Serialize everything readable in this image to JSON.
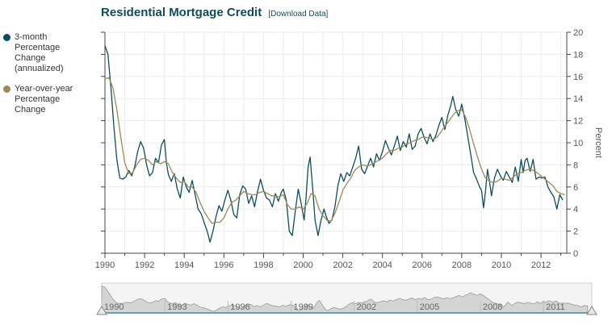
{
  "header": {
    "title": "Residential Mortgage Credit",
    "download_label": "[Download Data]"
  },
  "legend": {
    "items": [
      {
        "label": "3-month Percentage Change (annualized)",
        "color": "#0d4d5e"
      },
      {
        "label": "Year-over-year Percentage Change",
        "color": "#9c8a55"
      }
    ]
  },
  "navigator": {
    "labels": [
      "1990",
      "1993",
      "1996",
      "1999",
      "2002",
      "2005",
      "2008",
      "2011"
    ]
  },
  "chart_data": {
    "type": "line",
    "title": "Residential Mortgage Credit",
    "ylabel": "Percent",
    "xlabel": "",
    "xlim": [
      1990,
      2013.3
    ],
    "ylim": [
      0,
      20
    ],
    "x_ticks": [
      "1990",
      "1992",
      "1994",
      "1996",
      "1998",
      "2000",
      "2002",
      "2004",
      "2006",
      "2008",
      "2010",
      "2012"
    ],
    "y_ticks": [
      "0",
      "2",
      "4",
      "6",
      "8",
      "10",
      "12",
      "14",
      "16",
      "18",
      "20"
    ],
    "series": [
      {
        "name": "3-month Percentage Change (annualized)",
        "color": "#0d4d5e",
        "points": [
          [
            1990.0,
            18.8
          ],
          [
            1990.15,
            18.0
          ],
          [
            1990.3,
            15.0
          ],
          [
            1990.45,
            11.5
          ],
          [
            1990.6,
            8.5
          ],
          [
            1990.75,
            6.8
          ],
          [
            1990.9,
            6.7
          ],
          [
            1991.05,
            6.9
          ],
          [
            1991.2,
            7.5
          ],
          [
            1991.35,
            7.0
          ],
          [
            1991.5,
            7.8
          ],
          [
            1991.65,
            9.2
          ],
          [
            1991.8,
            10.1
          ],
          [
            1991.95,
            9.5
          ],
          [
            1992.1,
            8.0
          ],
          [
            1992.25,
            7.0
          ],
          [
            1992.4,
            7.3
          ],
          [
            1992.55,
            8.6
          ],
          [
            1992.7,
            8.2
          ],
          [
            1992.85,
            9.8
          ],
          [
            1993.0,
            10.3
          ],
          [
            1993.1,
            8.2
          ],
          [
            1993.2,
            7.1
          ],
          [
            1993.35,
            6.5
          ],
          [
            1993.5,
            7.2
          ],
          [
            1993.65,
            5.8
          ],
          [
            1993.8,
            5.0
          ],
          [
            1993.95,
            6.9
          ],
          [
            1994.1,
            6.0
          ],
          [
            1994.25,
            5.5
          ],
          [
            1994.4,
            6.6
          ],
          [
            1994.55,
            5.3
          ],
          [
            1994.7,
            4.0
          ],
          [
            1994.85,
            3.6
          ],
          [
            1995.0,
            2.8
          ],
          [
            1995.1,
            2.3
          ],
          [
            1995.2,
            1.7
          ],
          [
            1995.3,
            1.0
          ],
          [
            1995.45,
            2.0
          ],
          [
            1995.6,
            3.3
          ],
          [
            1995.75,
            4.3
          ],
          [
            1995.9,
            3.8
          ],
          [
            1996.05,
            4.8
          ],
          [
            1996.2,
            5.7
          ],
          [
            1996.35,
            4.8
          ],
          [
            1996.5,
            3.5
          ],
          [
            1996.65,
            3.2
          ],
          [
            1996.8,
            5.3
          ],
          [
            1996.95,
            6.1
          ],
          [
            1997.1,
            5.8
          ],
          [
            1997.25,
            4.5
          ],
          [
            1997.4,
            5.2
          ],
          [
            1997.55,
            4.2
          ],
          [
            1997.7,
            5.6
          ],
          [
            1997.85,
            6.7
          ],
          [
            1998.0,
            5.7
          ],
          [
            1998.15,
            5.0
          ],
          [
            1998.3,
            4.8
          ],
          [
            1998.45,
            4.2
          ],
          [
            1998.6,
            5.4
          ],
          [
            1998.75,
            4.7
          ],
          [
            1998.9,
            5.5
          ],
          [
            1999.0,
            5.8
          ],
          [
            1999.15,
            4.8
          ],
          [
            1999.3,
            2.0
          ],
          [
            1999.45,
            1.6
          ],
          [
            1999.6,
            3.8
          ],
          [
            1999.75,
            5.8
          ],
          [
            1999.9,
            4.5
          ],
          [
            2000.05,
            3.0
          ],
          [
            2000.15,
            5.2
          ],
          [
            2000.25,
            7.8
          ],
          [
            2000.35,
            8.7
          ],
          [
            2000.5,
            5.4
          ],
          [
            2000.6,
            3.0
          ],
          [
            2000.75,
            1.6
          ],
          [
            2000.9,
            3.0
          ],
          [
            2001.05,
            4.0
          ],
          [
            2001.15,
            3.4
          ],
          [
            2001.3,
            2.7
          ],
          [
            2001.45,
            3.0
          ],
          [
            2001.6,
            4.2
          ],
          [
            2001.75,
            6.1
          ],
          [
            2001.9,
            7.2
          ],
          [
            2002.05,
            6.5
          ],
          [
            2002.2,
            7.3
          ],
          [
            2002.35,
            7.0
          ],
          [
            2002.5,
            7.8
          ],
          [
            2002.65,
            8.6
          ],
          [
            2002.8,
            9.7
          ],
          [
            2002.95,
            7.6
          ],
          [
            2003.1,
            7.2
          ],
          [
            2003.25,
            7.9
          ],
          [
            2003.4,
            8.6
          ],
          [
            2003.55,
            7.8
          ],
          [
            2003.7,
            9.0
          ],
          [
            2003.85,
            8.4
          ],
          [
            2004.0,
            9.2
          ],
          [
            2004.15,
            10.2
          ],
          [
            2004.3,
            9.5
          ],
          [
            2004.45,
            8.9
          ],
          [
            2004.6,
            9.7
          ],
          [
            2004.75,
            10.6
          ],
          [
            2004.9,
            9.3
          ],
          [
            2005.05,
            10.1
          ],
          [
            2005.2,
            9.6
          ],
          [
            2005.35,
            10.8
          ],
          [
            2005.5,
            9.4
          ],
          [
            2005.65,
            9.7
          ],
          [
            2005.8,
            10.8
          ],
          [
            2005.95,
            11.3
          ],
          [
            2006.1,
            10.5
          ],
          [
            2006.25,
            9.9
          ],
          [
            2006.4,
            10.8
          ],
          [
            2006.55,
            10.1
          ],
          [
            2006.7,
            10.7
          ],
          [
            2006.85,
            11.6
          ],
          [
            2007.0,
            12.3
          ],
          [
            2007.15,
            11.2
          ],
          [
            2007.3,
            12.5
          ],
          [
            2007.45,
            13.4
          ],
          [
            2007.55,
            14.2
          ],
          [
            2007.7,
            13.0
          ],
          [
            2007.85,
            12.4
          ],
          [
            2008.0,
            13.5
          ],
          [
            2008.15,
            12.2
          ],
          [
            2008.3,
            10.6
          ],
          [
            2008.45,
            9.0
          ],
          [
            2008.6,
            7.3
          ],
          [
            2008.75,
            6.7
          ],
          [
            2008.9,
            6.0
          ],
          [
            2009.0,
            5.7
          ],
          [
            2009.1,
            4.1
          ],
          [
            2009.2,
            5.6
          ],
          [
            2009.3,
            7.6
          ],
          [
            2009.4,
            6.5
          ],
          [
            2009.5,
            5.2
          ],
          [
            2009.65,
            6.8
          ],
          [
            2009.8,
            7.6
          ],
          [
            2009.95,
            7.0
          ],
          [
            2010.1,
            6.6
          ],
          [
            2010.25,
            7.4
          ],
          [
            2010.4,
            6.9
          ],
          [
            2010.55,
            6.4
          ],
          [
            2010.7,
            7.8
          ],
          [
            2010.85,
            6.5
          ],
          [
            2011.0,
            8.5
          ],
          [
            2011.1,
            7.3
          ],
          [
            2011.2,
            8.4
          ],
          [
            2011.3,
            8.6
          ],
          [
            2011.45,
            7.4
          ],
          [
            2011.6,
            8.5
          ],
          [
            2011.75,
            6.7
          ],
          [
            2011.9,
            6.9
          ],
          [
            2012.05,
            6.8
          ],
          [
            2012.2,
            6.9
          ],
          [
            2012.35,
            6.0
          ],
          [
            2012.5,
            5.5
          ],
          [
            2012.65,
            5.1
          ],
          [
            2012.8,
            4.0
          ],
          [
            2012.95,
            5.3
          ],
          [
            2013.1,
            4.8
          ]
        ]
      },
      {
        "name": "Year-over-year Percentage Change",
        "color": "#9c8a55",
        "points": [
          [
            1990.0,
            15.8
          ],
          [
            1990.2,
            15.9
          ],
          [
            1990.4,
            15.0
          ],
          [
            1990.6,
            13.0
          ],
          [
            1990.8,
            10.5
          ],
          [
            1991.0,
            8.2
          ],
          [
            1991.2,
            7.2
          ],
          [
            1991.4,
            7.3
          ],
          [
            1991.6,
            8.0
          ],
          [
            1991.8,
            8.5
          ],
          [
            1992.0,
            8.6
          ],
          [
            1992.2,
            8.4
          ],
          [
            1992.4,
            8.0
          ],
          [
            1992.6,
            8.3
          ],
          [
            1992.8,
            8.1
          ],
          [
            1993.0,
            8.3
          ],
          [
            1993.2,
            8.1
          ],
          [
            1993.4,
            7.3
          ],
          [
            1993.6,
            6.8
          ],
          [
            1993.8,
            6.4
          ],
          [
            1994.0,
            6.5
          ],
          [
            1994.2,
            6.0
          ],
          [
            1994.4,
            6.0
          ],
          [
            1994.6,
            5.5
          ],
          [
            1994.8,
            4.6
          ],
          [
            1995.0,
            3.8
          ],
          [
            1995.2,
            3.2
          ],
          [
            1995.4,
            2.7
          ],
          [
            1995.6,
            2.8
          ],
          [
            1995.8,
            2.8
          ],
          [
            1996.0,
            3.2
          ],
          [
            1996.2,
            4.0
          ],
          [
            1996.4,
            4.6
          ],
          [
            1996.6,
            4.8
          ],
          [
            1996.8,
            5.2
          ],
          [
            1997.0,
            5.6
          ],
          [
            1997.2,
            5.4
          ],
          [
            1997.4,
            5.3
          ],
          [
            1997.6,
            5.3
          ],
          [
            1997.8,
            5.5
          ],
          [
            1998.0,
            5.6
          ],
          [
            1998.2,
            5.4
          ],
          [
            1998.4,
            5.2
          ],
          [
            1998.6,
            5.2
          ],
          [
            1998.8,
            5.1
          ],
          [
            1999.0,
            5.3
          ],
          [
            1999.2,
            4.4
          ],
          [
            1999.4,
            4.0
          ],
          [
            1999.6,
            4.0
          ],
          [
            1999.8,
            4.2
          ],
          [
            2000.0,
            4.0
          ],
          [
            2000.2,
            4.5
          ],
          [
            2000.4,
            5.4
          ],
          [
            2000.6,
            5.2
          ],
          [
            2000.8,
            4.0
          ],
          [
            2001.0,
            3.4
          ],
          [
            2001.2,
            3.0
          ],
          [
            2001.4,
            2.9
          ],
          [
            2001.6,
            3.6
          ],
          [
            2001.8,
            4.6
          ],
          [
            2002.0,
            5.7
          ],
          [
            2002.2,
            6.3
          ],
          [
            2002.4,
            6.8
          ],
          [
            2002.6,
            7.5
          ],
          [
            2002.8,
            7.8
          ],
          [
            2003.0,
            8.0
          ],
          [
            2003.2,
            7.9
          ],
          [
            2003.4,
            8.0
          ],
          [
            2003.6,
            8.2
          ],
          [
            2003.8,
            8.4
          ],
          [
            2004.0,
            8.6
          ],
          [
            2004.2,
            9.0
          ],
          [
            2004.4,
            9.3
          ],
          [
            2004.6,
            9.3
          ],
          [
            2004.8,
            9.5
          ],
          [
            2005.0,
            9.6
          ],
          [
            2005.2,
            9.9
          ],
          [
            2005.4,
            10.0
          ],
          [
            2005.6,
            10.2
          ],
          [
            2005.8,
            10.3
          ],
          [
            2006.0,
            10.5
          ],
          [
            2006.2,
            10.5
          ],
          [
            2006.4,
            10.4
          ],
          [
            2006.6,
            10.3
          ],
          [
            2006.8,
            10.6
          ],
          [
            2007.0,
            11.1
          ],
          [
            2007.2,
            11.6
          ],
          [
            2007.4,
            12.1
          ],
          [
            2007.6,
            12.6
          ],
          [
            2007.8,
            12.9
          ],
          [
            2008.0,
            13.0
          ],
          [
            2008.2,
            12.3
          ],
          [
            2008.4,
            11.2
          ],
          [
            2008.6,
            9.9
          ],
          [
            2008.8,
            8.7
          ],
          [
            2009.0,
            7.6
          ],
          [
            2009.2,
            6.8
          ],
          [
            2009.4,
            6.5
          ],
          [
            2009.6,
            6.4
          ],
          [
            2009.8,
            6.5
          ],
          [
            2010.0,
            6.8
          ],
          [
            2010.2,
            6.7
          ],
          [
            2010.4,
            6.6
          ],
          [
            2010.6,
            6.9
          ],
          [
            2010.8,
            7.2
          ],
          [
            2011.0,
            7.3
          ],
          [
            2011.2,
            7.5
          ],
          [
            2011.4,
            7.6
          ],
          [
            2011.6,
            7.5
          ],
          [
            2011.8,
            7.3
          ],
          [
            2012.0,
            7.0
          ],
          [
            2012.2,
            6.7
          ],
          [
            2012.4,
            6.4
          ],
          [
            2012.6,
            6.1
          ],
          [
            2012.8,
            5.6
          ],
          [
            2013.0,
            5.4
          ],
          [
            2013.2,
            5.3
          ]
        ]
      }
    ]
  }
}
